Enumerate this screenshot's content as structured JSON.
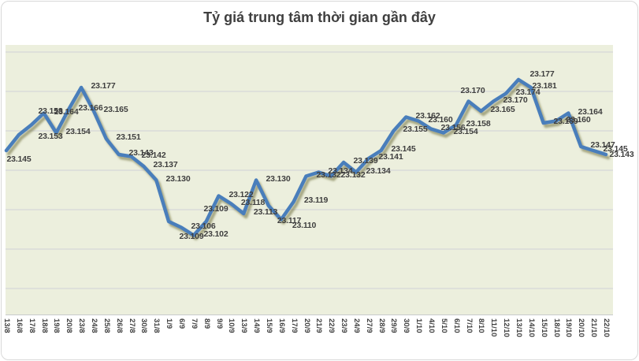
{
  "chart_data": {
    "type": "line",
    "title": "Tỷ giá trung tâm thời gian gần đây",
    "xlabel": "",
    "ylabel": "",
    "legend": "none",
    "grid": true,
    "x_tick_rotation": 90,
    "background_color": "#ecefdd",
    "line_color": "#4a7ebb",
    "shadow_color": "#6a6a38",
    "gridline_color": "#d5d8d9",
    "label_color": "#3f3f3f",
    "categories": [
      "13/8",
      "16/8",
      "17/8",
      "18/8",
      "19/8",
      "20/8",
      "23/8",
      "24/8",
      "25/8",
      "26/8",
      "27/8",
      "30/8",
      "31/8",
      "1/9",
      "6/9",
      "7/9",
      "8/9",
      "9/9",
      "10/9",
      "13/9",
      "14/9",
      "15/9",
      "16/9",
      "17/9",
      "20/9",
      "21/9",
      "22/9",
      "23/9",
      "24/9",
      "27/9",
      "28/9",
      "29/9",
      "30/9",
      "1/10",
      "4/10",
      "5/10",
      "6/10",
      "7/10",
      "8/10",
      "11/10",
      "12/10",
      "13/10",
      "14/10",
      "15/10",
      "18/10",
      "19/10",
      "20/10",
      "21/10",
      "22/10"
    ],
    "values": [
      23145,
      23153,
      23158,
      23164,
      23154,
      23166,
      23177,
      23165,
      23151,
      23143,
      23142,
      23137,
      23130,
      23109,
      23106,
      23102,
      23109,
      23122,
      23118,
      23113,
      23130,
      23117,
      23110,
      23119,
      23132,
      23134,
      23132,
      23139,
      23134,
      23141,
      23145,
      23155,
      23162,
      23160,
      23156,
      23154,
      23158,
      23170,
      23165,
      23170,
      23174,
      23181,
      23177,
      23159,
      23160,
      23164,
      23147,
      23145,
      23143
    ],
    "point_labels": [
      "23.145",
      "23.153",
      "23.158",
      "23.164",
      "23.154",
      "23.166",
      "23.177",
      "23.165",
      "23.151",
      "23.143",
      "23.142",
      "23.137",
      "23.130",
      "23.109",
      "23.106",
      "23.102",
      "23.109",
      "23.122",
      "23.118",
      "23.113",
      "23.130",
      "23.117",
      "23.110",
      "23.119",
      "23.132",
      "23.134",
      "23.132",
      "23.139",
      "23.134",
      "23.141",
      "23.145",
      "23.155",
      "23.162",
      "23.160",
      "23.156",
      "23.154",
      "23.158",
      "23.170",
      "23.165",
      "23.170",
      "23.174",
      "23.181",
      "23.177",
      "23.159",
      "23.160",
      "23.164",
      "23.147",
      "23.145",
      "23.143"
    ],
    "ylim": [
      23.071,
      23.209
    ],
    "gridline_values": [
      23.195,
      23.175,
      23.155,
      23.135,
      23.115,
      23.095,
      23.075
    ]
  }
}
